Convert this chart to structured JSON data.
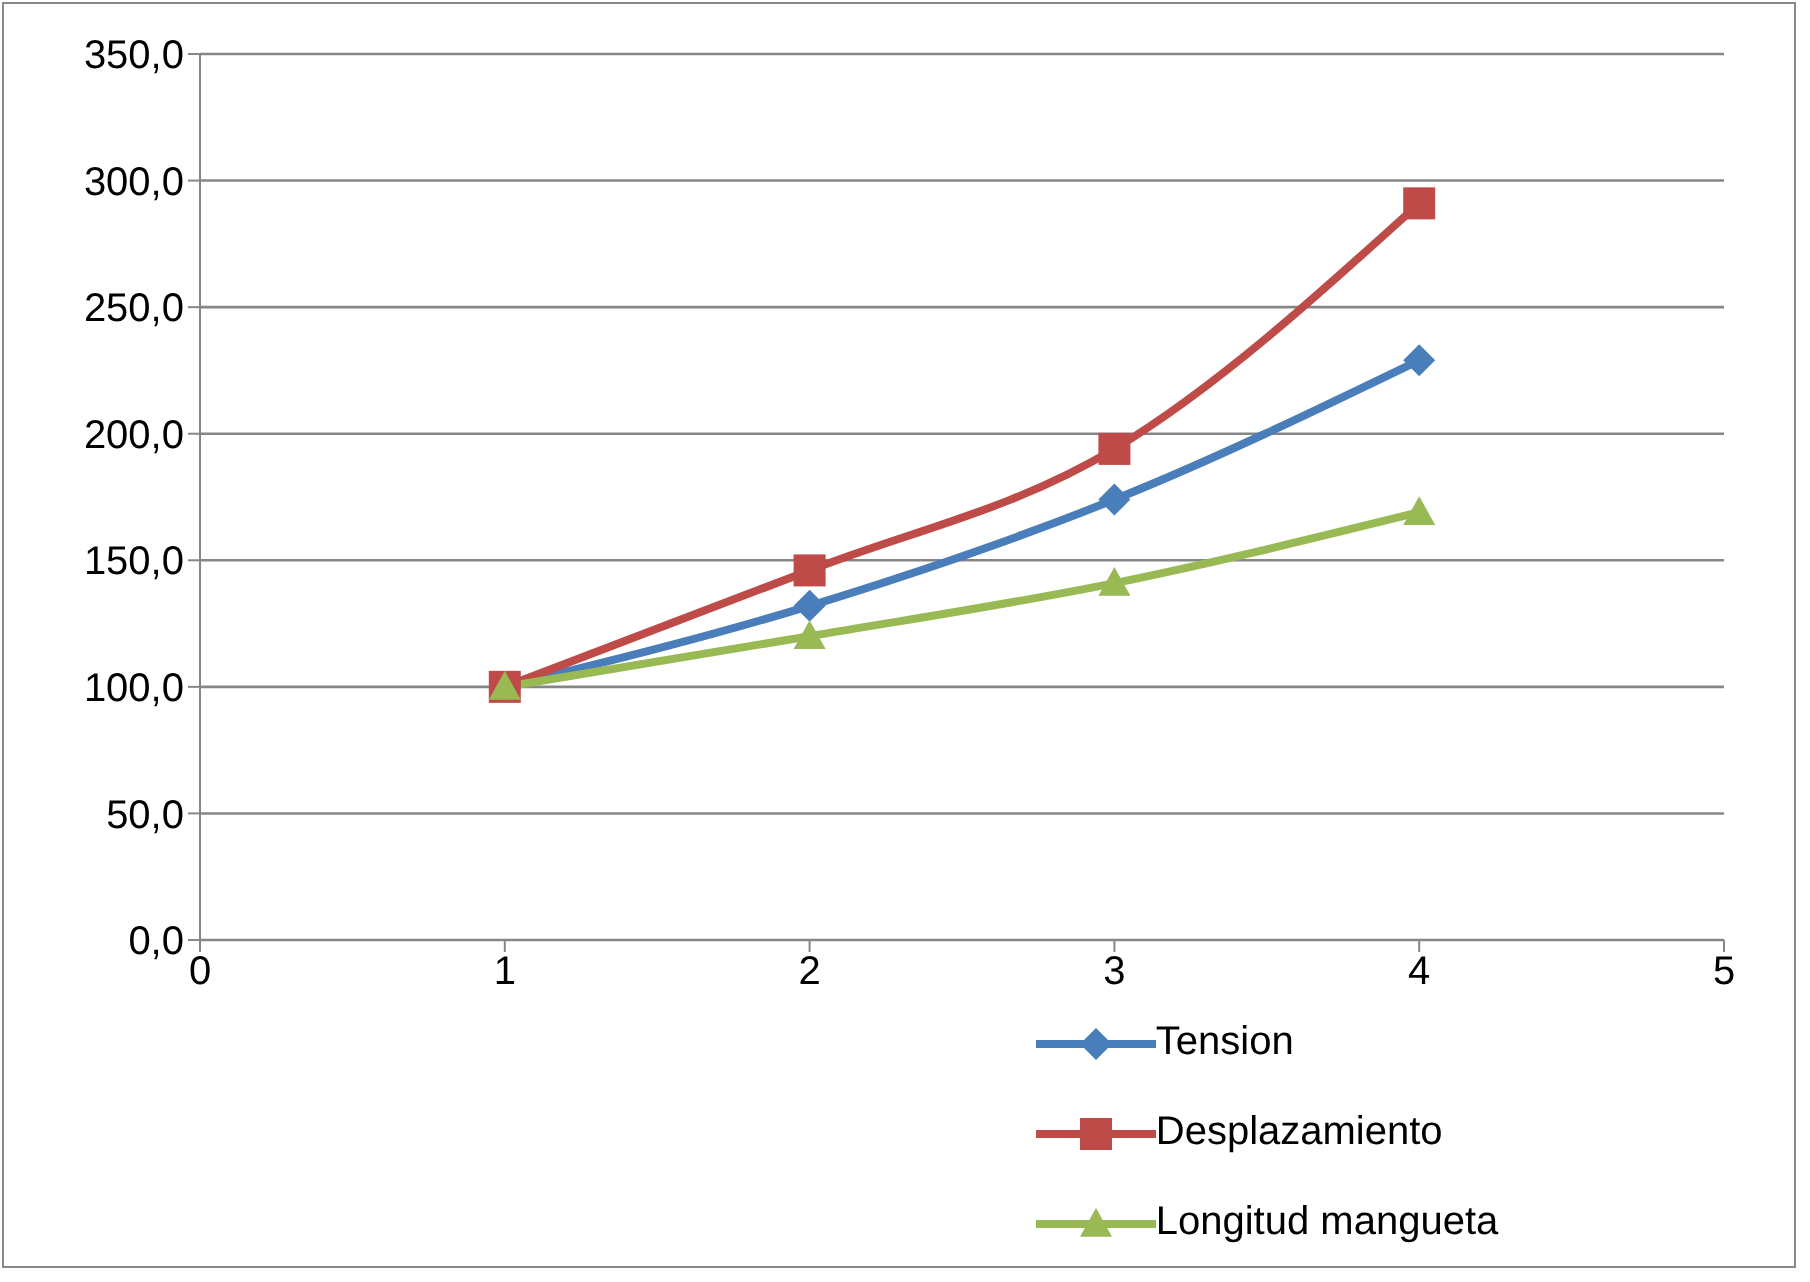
{
  "chart_data": {
    "type": "line",
    "x": [
      1,
      2,
      3,
      4
    ],
    "series": [
      {
        "name": "Tension",
        "color": "#4a7ebb",
        "values": [
          100,
          132,
          174,
          229
        ],
        "marker": "diamond"
      },
      {
        "name": "Desplazamiento",
        "color": "#be4b48",
        "values": [
          100,
          146,
          194,
          291
        ],
        "marker": "square"
      },
      {
        "name": "Longitud mangueta",
        "color": "#98b954",
        "values": [
          100,
          120,
          141,
          169
        ],
        "marker": "triangle"
      }
    ],
    "xlim": [
      0,
      5
    ],
    "xticks": [
      0,
      1,
      2,
      3,
      4,
      5
    ],
    "ylim": [
      0,
      350
    ],
    "yticks": [
      {
        "value": 0,
        "label": "0,0"
      },
      {
        "value": 50,
        "label": "50,0"
      },
      {
        "value": 100,
        "label": "100,0"
      },
      {
        "value": 150,
        "label": "150,0"
      },
      {
        "value": 200,
        "label": "200,0"
      },
      {
        "value": 250,
        "label": "250,0"
      },
      {
        "value": 300,
        "label": "300,0"
      },
      {
        "value": 350,
        "label": "350,0"
      }
    ],
    "grid": "y",
    "legend": "bottom",
    "line_style": "solid"
  }
}
